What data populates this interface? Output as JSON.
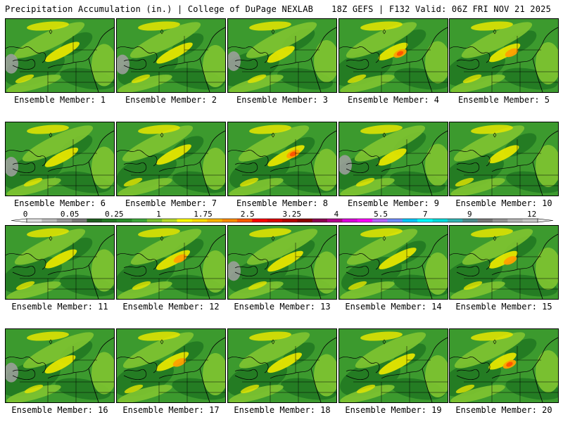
{
  "title": {
    "left": "Precipitation Accumulation (in.) | College of DuPage NEXLAB",
    "right": "18Z GEFS | F132 Valid: 06Z FRI NOV 21 2025"
  },
  "legend": {
    "labels": [
      "0",
      "0.05",
      "0.25",
      "1",
      "1.75",
      "2.5",
      "3.25",
      "4",
      "5.5",
      "7",
      "9",
      "12"
    ],
    "colors": [
      "#e0e0e0",
      "#bcbcbc",
      "#9a9a9a",
      "#7a7a7a",
      "#1e5e1e",
      "#237a23",
      "#2a8f2a",
      "#3ca83a",
      "#7cc230",
      "#b6dc2a",
      "#ffff00",
      "#ffdc00",
      "#ffb400",
      "#ff8c00",
      "#ff5a00",
      "#ff0000",
      "#dc0000",
      "#b40000",
      "#8c0000",
      "#8c0050",
      "#b4008c",
      "#dc00dc",
      "#ff00ff",
      "#b464ff",
      "#6e8cff",
      "#00c8ff",
      "#00ffff",
      "#00dcdc",
      "#32b4b4",
      "#508c8c",
      "#787878",
      "#969696",
      "#b4b4b4",
      "#c8c8c8"
    ]
  },
  "members": [
    {
      "label": "Ensemble Member: 1"
    },
    {
      "label": "Ensemble Member: 2"
    },
    {
      "label": "Ensemble Member: 3"
    },
    {
      "label": "Ensemble Member: 4"
    },
    {
      "label": "Ensemble Member: 5"
    },
    {
      "label": "Ensemble Member: 6"
    },
    {
      "label": "Ensemble Member: 7"
    },
    {
      "label": "Ensemble Member: 8"
    },
    {
      "label": "Ensemble Member: 9"
    },
    {
      "label": "Ensemble Member: 10"
    },
    {
      "label": "Ensemble Member: 11"
    },
    {
      "label": "Ensemble Member: 12"
    },
    {
      "label": "Ensemble Member: 13"
    },
    {
      "label": "Ensemble Member: 14"
    },
    {
      "label": "Ensemble Member: 15"
    },
    {
      "label": "Ensemble Member: 16"
    },
    {
      "label": "Ensemble Member: 17"
    },
    {
      "label": "Ensemble Member: 18"
    },
    {
      "label": "Ensemble Member: 19"
    },
    {
      "label": "Ensemble Member: 20"
    }
  ],
  "colors": {
    "base_green": "#3c9a2e",
    "dark_green": "#237a23",
    "light_green": "#7cc230",
    "yellow": "#e6e600",
    "orange": "#ffa000",
    "red": "#ff5000",
    "gray": "#a0a0a0"
  }
}
